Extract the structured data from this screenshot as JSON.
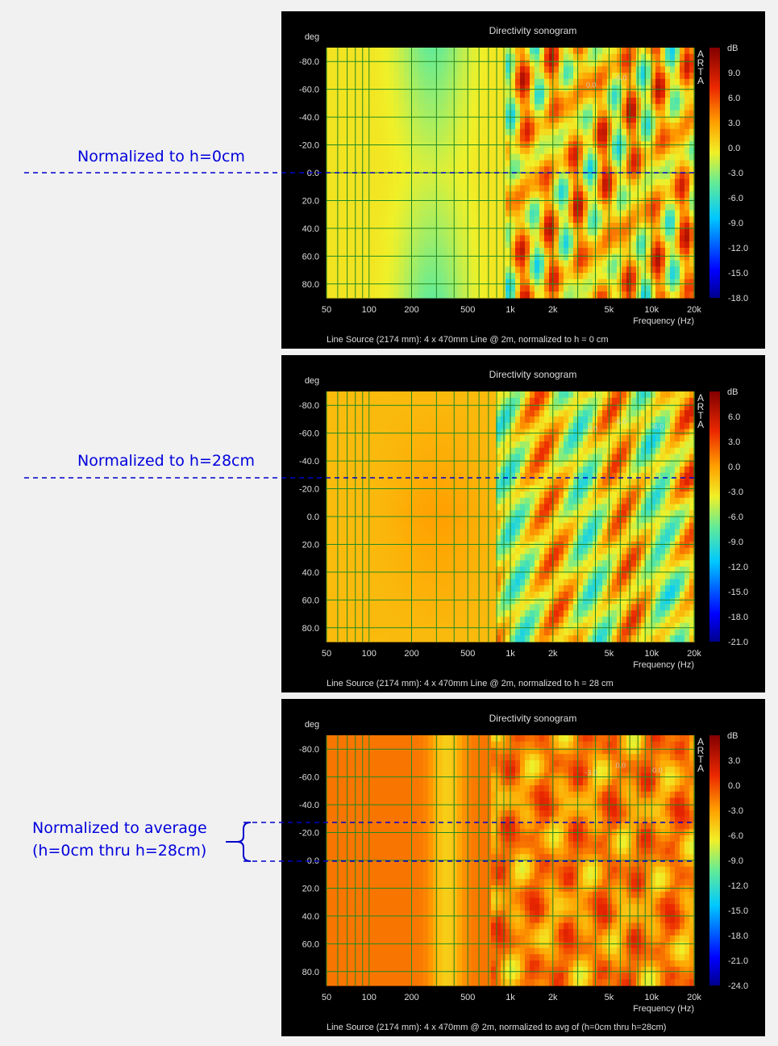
{
  "chart_data": [
    {
      "type": "heatmap",
      "title": "Directivity sonogram",
      "xlabel": "Frequency (Hz)",
      "ylabel": "deg",
      "colorbar_label": "dB",
      "brand": "ARTA",
      "x_scale": "log",
      "xlim": [
        50,
        20000
      ],
      "ylim": [
        -90,
        90
      ],
      "x_ticks": [
        "50",
        "100",
        "200",
        "500",
        "1k",
        "2k",
        "5k",
        "10k",
        "20k"
      ],
      "y_ticks": [
        "-80.0",
        "-60.0",
        "-40.0",
        "-20.0",
        "0.0",
        "20.0",
        "40.0",
        "60.0",
        "80.0"
      ],
      "colorbar_ticks": [
        "9.0",
        "6.0",
        "3.0",
        "0.0",
        "-3.0",
        "-6.0",
        "-9.0",
        "-12.0",
        "-15.0",
        "-18.0"
      ],
      "colorbar_range": [
        -18,
        12
      ],
      "footer": "Line Source (2174 mm): 4 x 470mm Line @ 2m, normalized to h = 0 cm",
      "contour_labels": [
        "0.0",
        "-6.0"
      ]
    },
    {
      "type": "heatmap",
      "title": "Directivity sonogram",
      "xlabel": "Frequency (Hz)",
      "ylabel": "deg",
      "colorbar_label": "dB",
      "brand": "ARTA",
      "x_scale": "log",
      "xlim": [
        50,
        20000
      ],
      "ylim": [
        -90,
        90
      ],
      "x_ticks": [
        "50",
        "100",
        "200",
        "500",
        "1k",
        "2k",
        "5k",
        "10k",
        "20k"
      ],
      "y_ticks": [
        "-80.0",
        "-60.0",
        "-40.0",
        "-20.0",
        "0.0",
        "20.0",
        "40.0",
        "60.0",
        "80.0"
      ],
      "colorbar_ticks": [
        "6.0",
        "3.0",
        "0.0",
        "-3.0",
        "-6.0",
        "-9.0",
        "-12.0",
        "-15.0",
        "-18.0",
        "-21.0"
      ],
      "colorbar_range": [
        -21,
        9
      ],
      "footer": "Line Source (2174 mm): 4 x 470mm Line @ 2m, normalized to h = 28 cm",
      "contour_labels": [
        "-3.0",
        "-6.0",
        "-6.0"
      ]
    },
    {
      "type": "heatmap",
      "title": "Directivity sonogram",
      "xlabel": "Frequency (Hz)",
      "ylabel": "deg",
      "colorbar_label": "dB",
      "brand": "ARTA",
      "x_scale": "log",
      "xlim": [
        50,
        20000
      ],
      "ylim": [
        -90,
        90
      ],
      "x_ticks": [
        "50",
        "100",
        "200",
        "500",
        "1k",
        "2k",
        "5k",
        "10k",
        "20k"
      ],
      "y_ticks": [
        "-80.0",
        "-60.0",
        "-40.0",
        "-20.0",
        "0.0",
        "20.0",
        "40.0",
        "60.0",
        "80.0"
      ],
      "colorbar_ticks": [
        "3.0",
        "0.0",
        "-3.0",
        "-6.0",
        "-9.0",
        "-12.0",
        "-15.0",
        "-18.0",
        "-21.0",
        "-24.0"
      ],
      "colorbar_range": [
        -24,
        6
      ],
      "footer": "Line Source (2174 mm): 4 x 470mm @ 2m, normalized to avg of (h=0cm thru h=28cm)",
      "contour_labels": [
        "-3.0",
        "0.0",
        "0.0"
      ]
    }
  ],
  "annotations": {
    "label_1": "Normalized to h=0cm",
    "label_2": "Normalized to h=28cm",
    "label_3_line1": "Normalized to average",
    "label_3_line2": "(h=0cm thru h=28cm)"
  },
  "colors": {
    "annotation": "#0000dd",
    "panel_background": "#000000",
    "page_background": "#f1f1f1",
    "grid": "#228822"
  }
}
